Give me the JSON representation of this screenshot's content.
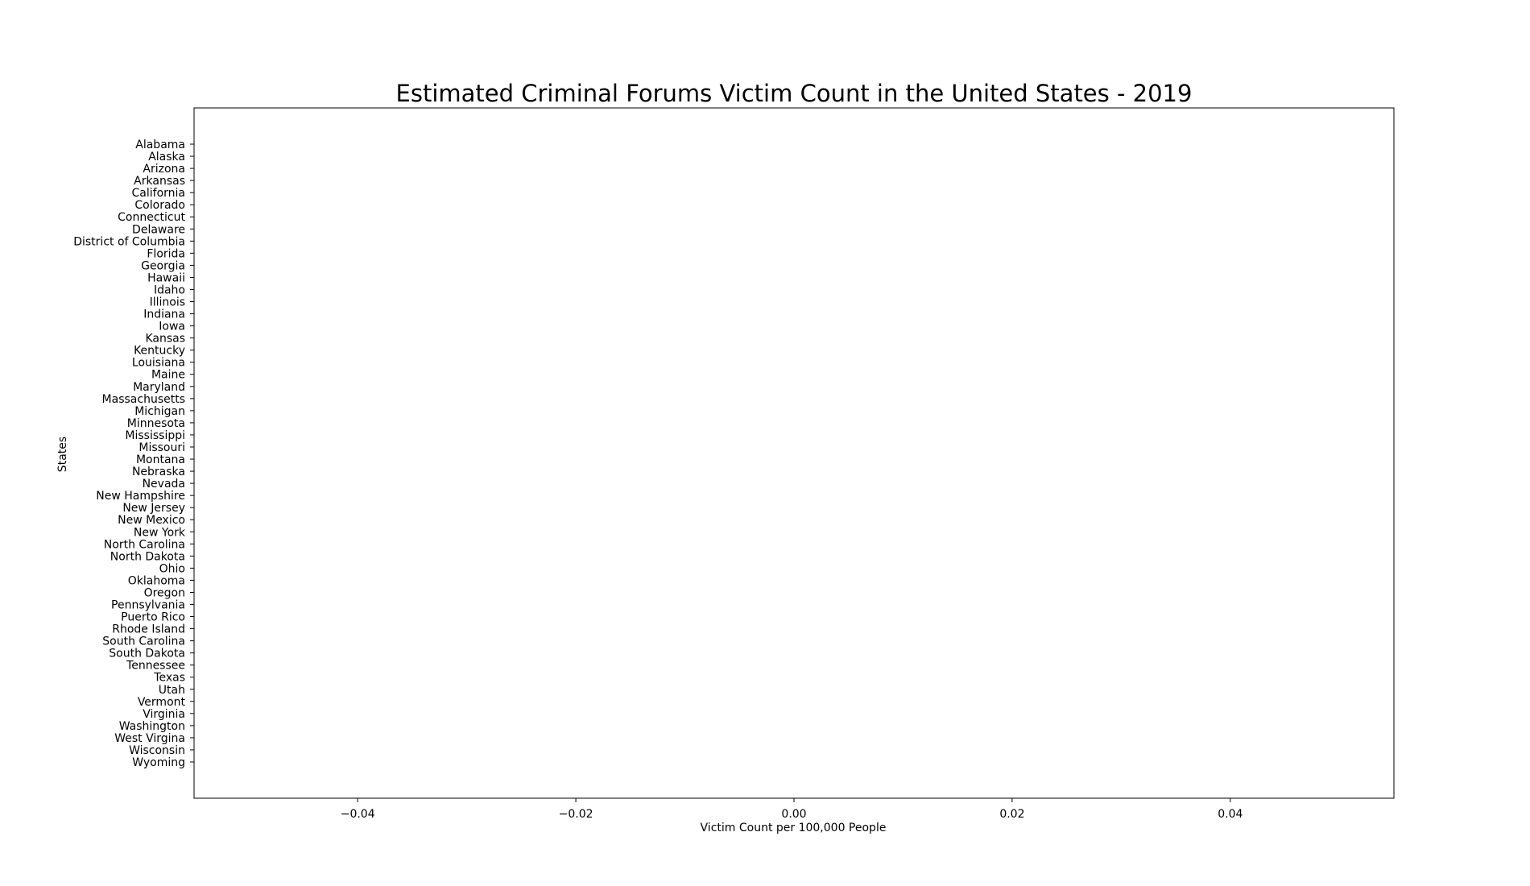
{
  "chart_data": {
    "type": "bar",
    "orientation": "horizontal",
    "title": "Estimated Criminal Forums Victim Count in the United States - 2019",
    "xlabel": "Victim Count per 100,000 People",
    "ylabel": "States",
    "xlim": [
      -0.055,
      0.055
    ],
    "x_ticks": [
      -0.04,
      -0.02,
      0.0,
      0.02,
      0.04
    ],
    "x_tick_labels": [
      "−0.04",
      "−0.02",
      "0.00",
      "0.02",
      "0.04"
    ],
    "grid": false,
    "categories": [
      "Alabama",
      "Alaska",
      "Arizona",
      "Arkansas",
      "California",
      "Colorado",
      "Connecticut",
      "Delaware",
      "District of Columbia",
      "Florida",
      "Georgia",
      "Hawaii",
      "Idaho",
      "Illinois",
      "Indiana",
      "Iowa",
      "Kansas",
      "Kentucky",
      "Louisiana",
      "Maine",
      "Maryland",
      "Massachusetts",
      "Michigan",
      "Minnesota",
      "Mississippi",
      "Missouri",
      "Montana",
      "Nebraska",
      "Nevada",
      "New Hampshire",
      "New Jersey",
      "New Mexico",
      "New York",
      "North Carolina",
      "North Dakota",
      "Ohio",
      "Oklahoma",
      "Oregon",
      "Pennsylvania",
      "Puerto Rico",
      "Rhode Island",
      "South Carolina",
      "South Dakota",
      "Tennessee",
      "Texas",
      "Utah",
      "Vermont",
      "Virginia",
      "Washington",
      "West Virgina",
      "Wisconsin",
      "Wyoming"
    ],
    "values": [
      0,
      0,
      0,
      0,
      0,
      0,
      0,
      0,
      0,
      0,
      0,
      0,
      0,
      0,
      0,
      0,
      0,
      0,
      0,
      0,
      0,
      0,
      0,
      0,
      0,
      0,
      0,
      0,
      0,
      0,
      0,
      0,
      0,
      0,
      0,
      0,
      0,
      0,
      0,
      0,
      0,
      0,
      0,
      0,
      0,
      0,
      0,
      0,
      0,
      0,
      0,
      0
    ],
    "bar_color": "#1f77b4",
    "axis_color": "#000000"
  }
}
